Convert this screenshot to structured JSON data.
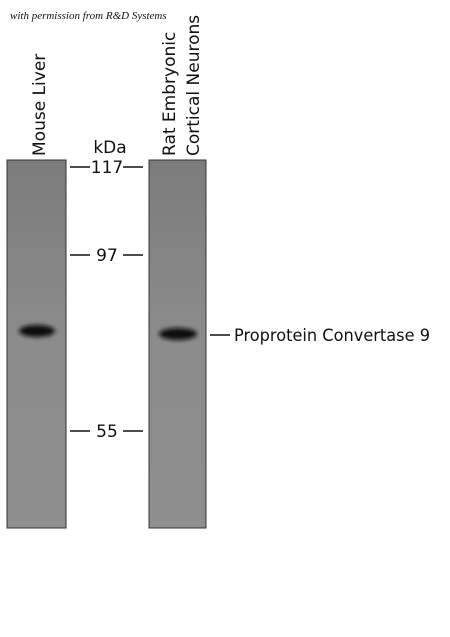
{
  "permission": "with permission from R&D Systems",
  "lanes": [
    {
      "label_lines": [
        "Mouse Liver"
      ]
    },
    {
      "label_lines": [
        "Rat Embryonic",
        "Cortical Neurons"
      ]
    }
  ],
  "marker_unit": "kDa",
  "markers": [
    "117",
    "97",
    "55"
  ],
  "band_label": "Proprotein Convertase 9"
}
